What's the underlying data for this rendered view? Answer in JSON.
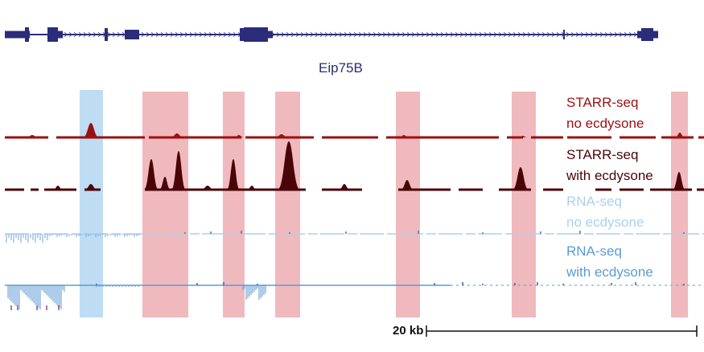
{
  "gene": {
    "name": "Eip75B",
    "color": "#2c2c7a"
  },
  "tracks": [
    {
      "line1": "STARR-seq",
      "line2": "no ecdysone",
      "color": "#9b1010"
    },
    {
      "line1": "STARR-seq",
      "line2": "with ecdysone",
      "color": "#4a0508"
    },
    {
      "line1": "RNA-seq",
      "line2": "no ecdysone",
      "color": "#a9d2f0"
    },
    {
      "line1": "RNA-seq",
      "line2": "with ecdysone",
      "color": "#5b9bd5"
    }
  ],
  "highlights": {
    "blue_color": "#a8d0ef",
    "red_color": "#e8939a"
  },
  "scale_bar": {
    "label": "20 kb"
  }
}
